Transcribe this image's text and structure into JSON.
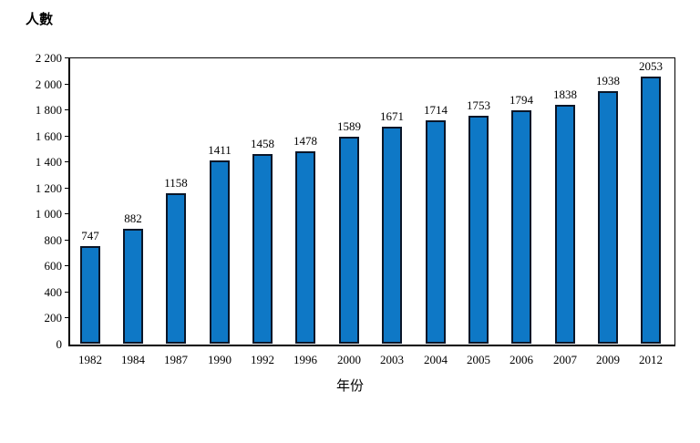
{
  "y_axis_title": "人數",
  "x_axis_title": "年份",
  "chart_data": {
    "type": "bar",
    "categories": [
      "1982",
      "1984",
      "1987",
      "1990",
      "1992",
      "1996",
      "2000",
      "2003",
      "2004",
      "2005",
      "2006",
      "2007",
      "2009",
      "2012"
    ],
    "values": [
      747,
      882,
      1158,
      1411,
      1458,
      1478,
      1589,
      1671,
      1714,
      1753,
      1794,
      1838,
      1938,
      2053
    ],
    "title": "",
    "xlabel": "年份",
    "ylabel": "人數",
    "ylim": [
      0,
      2200
    ],
    "y_tick_values": [
      0,
      200,
      400,
      600,
      800,
      1000,
      1200,
      1400,
      1600,
      1800,
      2000,
      2200
    ],
    "y_tick_labels": [
      "0",
      "200",
      "400",
      "600",
      "800",
      "1 000",
      "1 200",
      "1 400",
      "1 600",
      "1 800",
      "2 000",
      "2 200"
    ],
    "value_labels_shown": true,
    "grid": false,
    "legend": "none",
    "bar_color": "#0e78c6",
    "bar_border_color": "#0a1628"
  }
}
